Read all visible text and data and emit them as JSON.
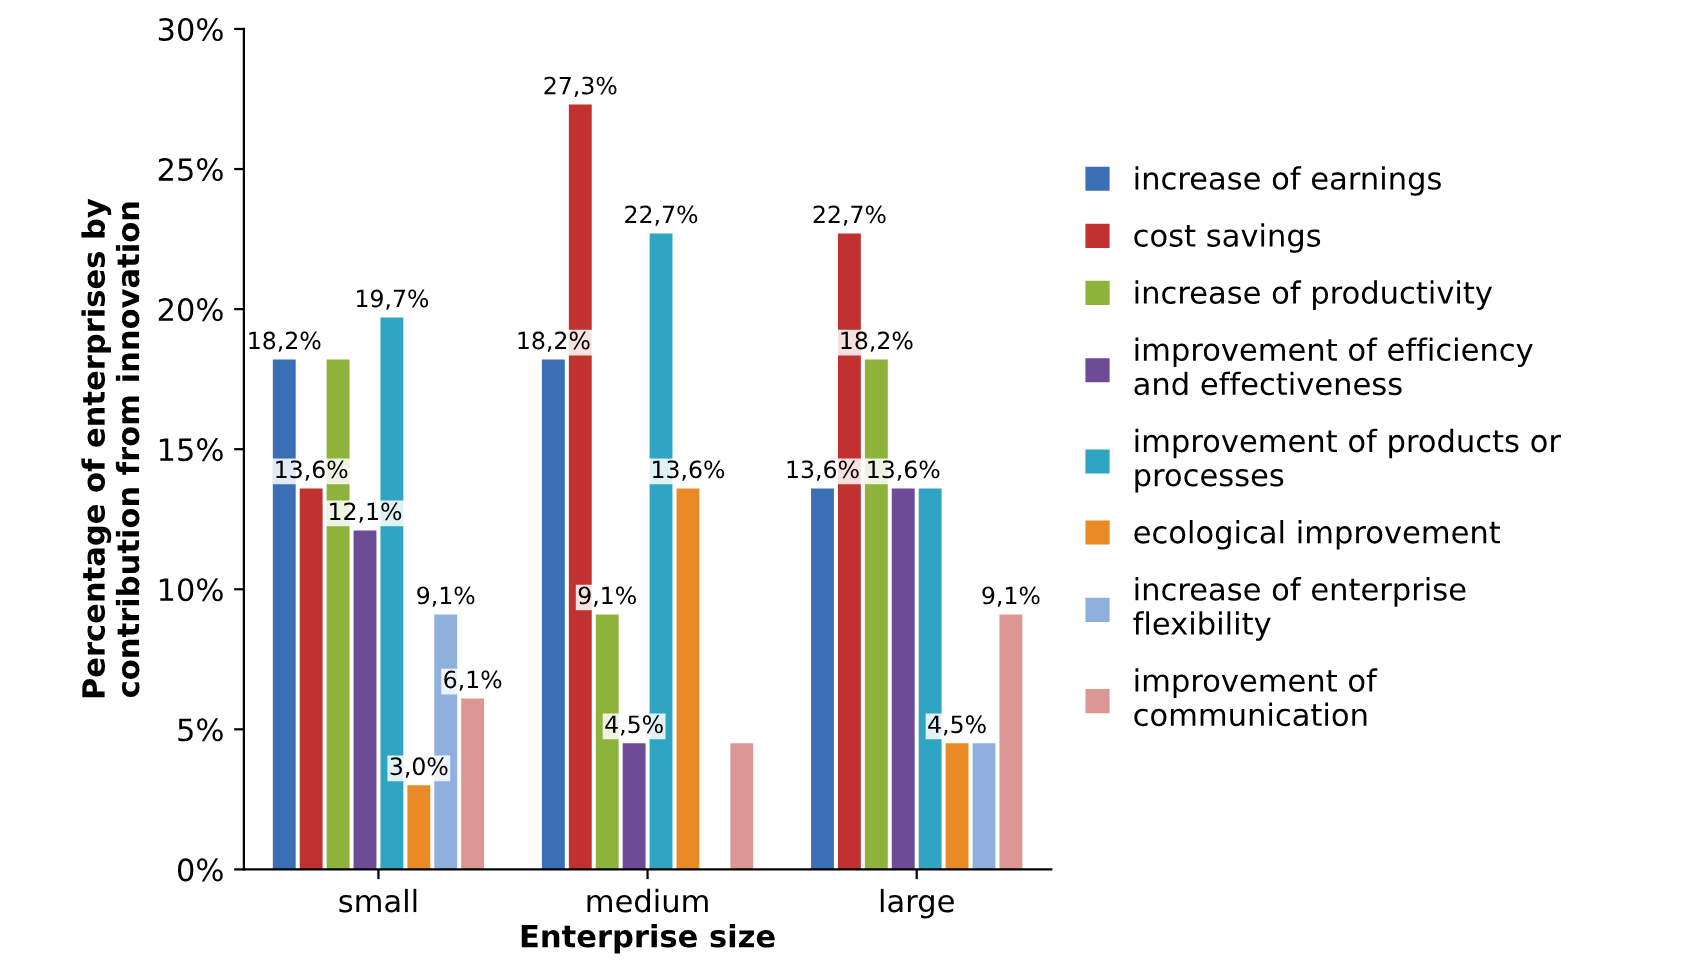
{
  "chart_data": {
    "type": "bar",
    "xlabel": "Enterprise size",
    "ylabel": "Percentage of enterprises by\ncontribution from innovation",
    "categories": [
      "small",
      "medium",
      "large"
    ],
    "ylim": [
      0,
      30
    ],
    "yticks": [
      {
        "value": 0,
        "label": "0%"
      },
      {
        "value": 5,
        "label": "5%"
      },
      {
        "value": 10,
        "label": "10%"
      },
      {
        "value": 15,
        "label": "15%"
      },
      {
        "value": 20,
        "label": "20%"
      },
      {
        "value": 25,
        "label": "25%"
      },
      {
        "value": 30,
        "label": "30%"
      }
    ],
    "legend": "right",
    "grid": false,
    "series": [
      {
        "name": "increase of earnings",
        "color": "#3a6fb5",
        "values": [
          18.2,
          18.2,
          13.6
        ],
        "value_labels": [
          "18,2%",
          "18,2%",
          "13,6%"
        ]
      },
      {
        "name": "cost savings",
        "color": "#c0312f",
        "values": [
          13.6,
          27.3,
          22.7
        ],
        "value_labels": [
          "13,6%",
          "27,3%",
          "22,7%"
        ]
      },
      {
        "name": "increase of productivity",
        "color": "#8db33a",
        "values": [
          18.2,
          9.1,
          18.2
        ],
        "value_labels": [
          null,
          "9,1%",
          "18,2%"
        ]
      },
      {
        "name": "improvement of efficiency\nand effectiveness",
        "color": "#6d4b96",
        "values": [
          12.1,
          4.5,
          13.6
        ],
        "value_labels": [
          "12,1%",
          "4,5%",
          "13,6%"
        ]
      },
      {
        "name": "improvement of products or\nprocesses",
        "color": "#2fa5c2",
        "values": [
          19.7,
          22.7,
          13.6
        ],
        "value_labels": [
          "19,7%",
          "22,7%",
          null
        ]
      },
      {
        "name": "ecological improvement",
        "color": "#e98a25",
        "values": [
          3.0,
          13.6,
          4.5
        ],
        "value_labels": [
          "3,0%",
          "13,6%",
          "4,5%"
        ]
      },
      {
        "name": "increase of enterprise\nflexibility",
        "color": "#8fb0dc",
        "values": [
          9.1,
          0,
          4.5
        ],
        "value_labels": [
          "9,1%",
          null,
          null
        ]
      },
      {
        "name": "improvement of\ncommunication",
        "color": "#dc9795",
        "values": [
          6.1,
          4.5,
          9.1
        ],
        "value_labels": [
          "6,1%",
          null,
          "9,1%"
        ]
      }
    ]
  }
}
